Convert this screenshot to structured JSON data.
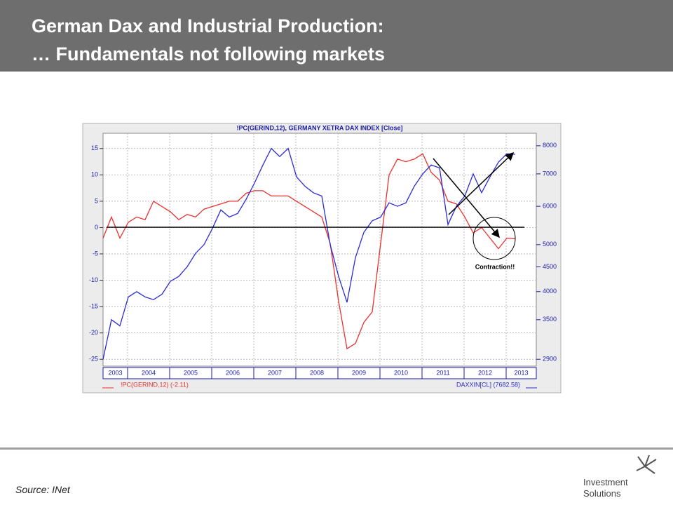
{
  "header": {
    "title_line1": "German Dax and Industrial Production:",
    "title_line2": "… Fundamentals not following markets"
  },
  "source": "Source: INet",
  "logo": {
    "line1": "Investment",
    "line2": "Solutions"
  },
  "chart_data": {
    "type": "line",
    "title": "!PC(GERIND,12), GERMANY  XETRA DAX INDEX [Close]",
    "year_labels": [
      "2003",
      "2004",
      "2005",
      "2006",
      "2007",
      "2008",
      "2009",
      "2010",
      "2011",
      "2012",
      "2013"
    ],
    "ylim": [
      -26.3,
      17.9
    ],
    "yticks": [
      15,
      10,
      5,
      0,
      -5,
      -10,
      -15,
      -20,
      -25
    ],
    "y2lim": [
      2807,
      8490
    ],
    "y2log": true,
    "y2ticks": [
      8000,
      7000,
      6000,
      5000,
      4500,
      4000,
      3500,
      2900
    ],
    "grid": true,
    "annotation": "Contraction!!",
    "series": [
      {
        "name": "!PC(GERIND,12) (-2.11)",
        "color": "#e8322e",
        "values": [
          -2,
          2,
          -2,
          1,
          2,
          1.5,
          5,
          4,
          3,
          1.5,
          2.5,
          2,
          3.5,
          4,
          4.5,
          5,
          5,
          6.5,
          7,
          7,
          6,
          6,
          6,
          5,
          4,
          3,
          2,
          -3,
          -14,
          -23,
          -22,
          -18,
          -16,
          -3,
          10,
          13,
          12.5,
          13,
          14,
          10.5,
          9,
          5,
          4.5,
          2,
          -1,
          0,
          -2,
          -4,
          -2,
          -2.11
        ]
      },
      {
        "name": "DAXXIN[CL] (7682.58)",
        "color": "#2b2bd6",
        "axis": "y2",
        "values": [
          2900,
          3500,
          3400,
          3900,
          4000,
          3900,
          3850,
          3950,
          4200,
          4300,
          4500,
          4800,
          5000,
          5400,
          5900,
          5700,
          5800,
          6200,
          6700,
          7300,
          7900,
          7600,
          7900,
          6900,
          6600,
          6400,
          6300,
          5000,
          4300,
          3800,
          4700,
          5300,
          5600,
          5700,
          6100,
          6000,
          6100,
          6600,
          7000,
          7300,
          7200,
          5500,
          6000,
          6300,
          7000,
          6400,
          6900,
          7400,
          7700,
          7682.58
        ]
      }
    ]
  }
}
